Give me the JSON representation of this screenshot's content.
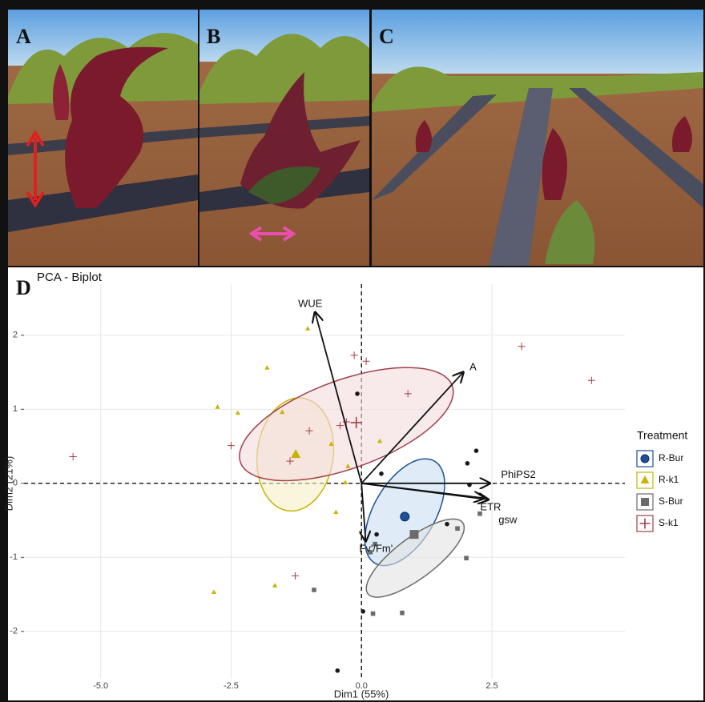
{
  "panel_labels": [
    "A",
    "B",
    "C",
    "D"
  ],
  "chart_data": {
    "type": "biplot",
    "title": "PCA - Biplot",
    "x_label": "Dim1 (55%)",
    "y_label": "Dim2 (21%)",
    "xlim": [
      -6.47,
      5.05
    ],
    "ylim": [
      -2.64,
      2.69
    ],
    "xticks": [
      {
        "value": -5,
        "label": "-5.0"
      },
      -2.5,
      {
        "value": 0,
        "label": "0.0"
      },
      2.5
    ],
    "yticks": [
      -2,
      -1,
      0,
      1,
      2
    ],
    "grid": true,
    "legend_title": "Treatment",
    "legend": "right",
    "series": [
      {
        "name": "R-Bur",
        "color": "#1d4f9a",
        "fill": "#c9def0",
        "marker": "circle",
        "x": [
          -0.08,
          0.38,
          2.03,
          2.2,
          2.07,
          1.64,
          0.29,
          0.03,
          -0.46
        ],
        "values": [
          1.21,
          0.13,
          0.27,
          0.44,
          -0.02,
          -0.55,
          -0.69,
          -1.73,
          -2.53
        ],
        "centroid": [
          0.83,
          -0.45
        ],
        "ellipse": {
          "center": [
            0.83,
            -0.39
          ],
          "axis1": [
            0.57,
            0.69
          ],
          "axis2": [
            0.51,
            -0.21
          ]
        }
      },
      {
        "name": "R-k1",
        "color": "#c8b400",
        "fill": "#f6f0c8",
        "marker": "triangle",
        "x": [
          -1.03,
          -1.81,
          -2.76,
          -2.37,
          -1.52,
          -0.58,
          -0.26,
          -0.31,
          -0.49,
          0.35,
          -1.66,
          -2.83
        ],
        "values": [
          2.09,
          1.56,
          1.03,
          0.95,
          0.96,
          0.53,
          0.23,
          0.01,
          -0.39,
          0.57,
          -1.38,
          -1.47
        ],
        "centroid": [
          -1.26,
          0.39
        ],
        "ellipse": {
          "center": [
            -1.27,
            0.39
          ],
          "axis1": [
            0.15,
            0.76
          ],
          "axis2": [
            0.72,
            -0.08
          ]
        }
      },
      {
        "name": "S-Bur",
        "color": "#6b6b6b",
        "fill": "#e3e3e3",
        "marker": "square",
        "x": [
          2.27,
          1.84,
          2.01,
          0.26,
          0.17,
          0.78,
          0.22,
          -0.91
        ],
        "values": [
          -0.41,
          -0.61,
          -1.01,
          -0.82,
          -0.93,
          -1.75,
          -1.76,
          -1.44
        ],
        "centroid": [
          1.01,
          -0.69
        ],
        "ellipse": {
          "center": [
            1.03,
            -1.01
          ],
          "axis1": [
            0.91,
            0.48
          ],
          "axis2": [
            0.23,
            -0.22
          ]
        }
      },
      {
        "name": "S-k1",
        "color": "#a0404a",
        "fill": "#f3dadd",
        "marker": "plus",
        "x": [
          -5.53,
          3.07,
          4.41,
          -0.14,
          0.09,
          0.89,
          -2.5,
          -1.0,
          -1.37,
          -0.29,
          -0.41,
          -1.27
        ],
        "values": [
          0.36,
          1.85,
          1.39,
          1.73,
          1.65,
          1.21,
          0.51,
          0.71,
          0.3,
          0.83,
          0.78,
          -1.25
        ],
        "centroid": [
          -0.1,
          0.82
        ],
        "ellipse": {
          "center": [
            -0.29,
            0.8
          ],
          "axis1": [
            2.03,
            0.52
          ],
          "axis2": [
            0.29,
            -0.56
          ]
        }
      }
    ],
    "loadings": [
      {
        "name": "WUE",
        "x": -0.89,
        "y": 2.31
      },
      {
        "name": "A",
        "x": 1.95,
        "y": 1.5
      },
      {
        "name": "PhiPS2",
        "x": 2.46,
        "y": 0.0
      },
      {
        "name": "ETR",
        "x": 2.43,
        "y": -0.22
      },
      {
        "name": "gsw",
        "x": 2.35,
        "y": -0.2
      },
      {
        "name": "Fv'/Fm'",
        "x": 0.08,
        "y": -0.78
      }
    ]
  }
}
